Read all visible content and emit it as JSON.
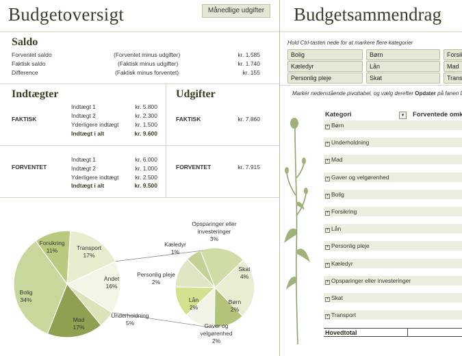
{
  "left": {
    "title": "Budgetoversigt",
    "monthly_button": "Månedlige udgifter",
    "saldo": {
      "heading": "Saldo",
      "rows": [
        {
          "label": "Forventet saldo",
          "note": "(Forventet minus udgifter)",
          "amount": "kr. 1.585"
        },
        {
          "label": "Faktisk saldo",
          "note": "(Faktisk minus udgifter)",
          "amount": "kr. 1.740"
        },
        {
          "label": "Difference",
          "note": "(Faktisk minus forventet)",
          "amount": "kr. 155"
        }
      ]
    },
    "income": {
      "heading": "Indtægter",
      "actual_label": "FAKTISK",
      "actual_rows": [
        {
          "label": "Indtægt 1",
          "amount": "kr. 5.800"
        },
        {
          "label": "Indtægt 2",
          "amount": "kr. 2.300"
        },
        {
          "label": "Yderligere indtægt",
          "amount": "kr. 1.500"
        }
      ],
      "actual_total": {
        "label": "Indtægt i alt",
        "amount": "kr. 9.600"
      },
      "expected_label": "FORVENTET",
      "expected_rows": [
        {
          "label": "Indtægt 1",
          "amount": "kr. 6.000"
        },
        {
          "label": "Indtægt 2",
          "amount": "kr. 1.000"
        },
        {
          "label": "Yderligere indtægt",
          "amount": "kr. 2.500"
        }
      ],
      "expected_total": {
        "label": "Indtægt i alt",
        "amount": "kr. 9.500"
      }
    },
    "expenses": {
      "heading": "Udgifter",
      "actual_label": "FAKTISK",
      "actual_amount": "kr. 7.860",
      "expected_label": "FORVENTET",
      "expected_amount": "kr. 7.915"
    }
  },
  "chart_data": {
    "type": "pie",
    "title": "",
    "main": [
      {
        "label": "Forsikring",
        "value": 11
      },
      {
        "label": "Transport",
        "value": 17
      },
      {
        "label": "Andet",
        "value": 16
      },
      {
        "label": "Underholdning",
        "value": 5
      },
      {
        "label": "Mad",
        "value": 17
      },
      {
        "label": "Bolig",
        "value": 34
      }
    ],
    "secondary": [
      {
        "label": "Opsparinger eller investeringer",
        "value": 3
      },
      {
        "label": "Skat",
        "value": 4
      },
      {
        "label": "Børn",
        "value": 2
      },
      {
        "label": "Gaver og velgørenhed",
        "value": 2
      },
      {
        "label": "Lån",
        "value": 2
      },
      {
        "label": "Personlig pleje",
        "value": 2
      },
      {
        "label": "Kæledyr",
        "value": 1
      }
    ],
    "units": "%",
    "colors": [
      "#d7e3b0",
      "#c8d696",
      "#b7c97c",
      "#a7ba66",
      "#92a552",
      "#7d8f42",
      "#f0f4e0"
    ]
  },
  "right": {
    "title": "Budgetsammendrag",
    "hint1": "Hold Ctrl-tasten nede for at markere flere kategorier",
    "slicers": [
      "Bolig",
      "Børn",
      "Forsikring",
      "Kæledyr",
      "Lån",
      "Mad",
      "Personlig pleje",
      "Skat",
      "Transport"
    ],
    "hint2_pre": "Markér nedenstående pivottabel, og vælg derefter ",
    "hint2_bold": "Opdater",
    "hint2_post": " på fanen Data",
    "pivot": {
      "col1": "Kategori",
      "col2": "Forventede omkostninger",
      "rows": [
        "Børn",
        "Underholdning",
        "Mad",
        "Gaver og velgørenhed",
        "Bolig",
        "Forsikring",
        "Lån",
        "Personlig pleje",
        "Kæledyr",
        "Opsparinger eller investeringer",
        "Skat",
        "Transport"
      ],
      "total_label": "Hovedtotal"
    }
  }
}
